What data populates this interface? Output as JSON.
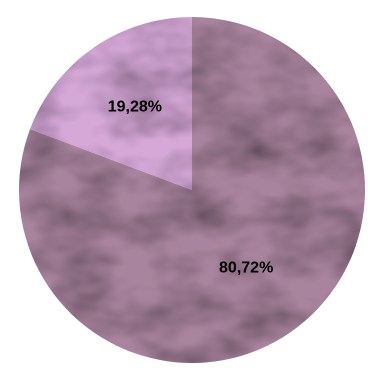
{
  "chart_data": {
    "type": "pie",
    "title": "",
    "slices": [
      {
        "label": "80,72%",
        "value": 80.72,
        "color": "#a9849e"
      },
      {
        "label": "19,28%",
        "value": 19.28,
        "color": "#d6a8d8"
      }
    ],
    "legend": "none",
    "labels_on_slices": true
  }
}
